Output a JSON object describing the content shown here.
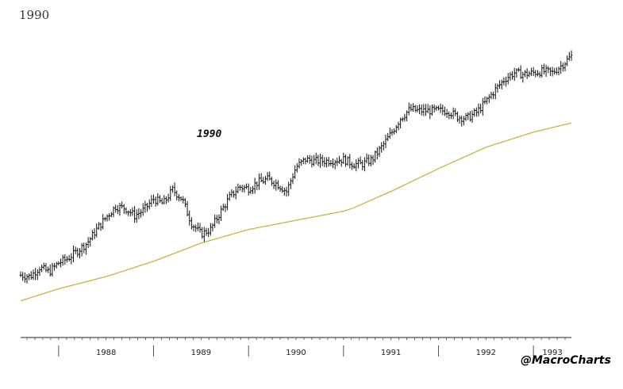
{
  "page": {
    "title": "1990",
    "watermark": "@MacroCharts"
  },
  "chart_data": {
    "type": "line",
    "annotation": "1990",
    "x_tick_labels": [
      "1988",
      "1989",
      "1990",
      "1991",
      "1992",
      "1993"
    ],
    "colors": {
      "price": "#111111",
      "moving_average": "#c8b14a"
    },
    "series": [
      {
        "style": "ohlc-bars",
        "x": [
          1987.6,
          1987.7,
          1987.8,
          1987.9,
          1988.0,
          1988.1,
          1988.2,
          1988.3,
          1988.4,
          1988.5,
          1988.6,
          1988.7,
          1988.8,
          1988.9,
          1989.0,
          1989.1,
          1989.2,
          1989.3,
          1989.4,
          1989.5,
          1989.6,
          1989.7,
          1989.8,
          1989.9,
          1990.0,
          1990.1,
          1990.2,
          1990.3,
          1990.4,
          1990.5,
          1990.6,
          1990.7,
          1990.8,
          1990.9,
          1991.0,
          1991.1,
          1991.2,
          1991.3,
          1991.4,
          1991.5,
          1991.6,
          1991.7,
          1991.8,
          1991.9,
          1992.0,
          1992.1,
          1992.2,
          1992.3,
          1992.4,
          1992.5,
          1992.6,
          1992.7,
          1992.8,
          1992.9,
          1993.0,
          1993.1,
          1993.2,
          1993.3,
          1993.4
        ],
        "values": [
          230,
          228,
          240,
          234,
          246,
          252,
          262,
          272,
          290,
          306,
          320,
          318,
          308,
          316,
          330,
          324,
          342,
          330,
          298,
          284,
          290,
          312,
          332,
          346,
          344,
          352,
          356,
          350,
          340,
          372,
          382,
          380,
          380,
          381,
          382,
          376,
          376,
          382,
          398,
          416,
          436,
          448,
          446,
          446,
          446,
          446,
          438,
          436,
          444,
          458,
          474,
          488,
          496,
          494,
          496,
          498,
          496,
          506,
          518
        ]
      },
      {
        "style": "line",
        "x": [
          1987.6,
          1988.0,
          1988.5,
          1989.0,
          1989.5,
          1990.0,
          1990.5,
          1991.0,
          1991.1,
          1991.5,
          1992.0,
          1992.5,
          1993.0,
          1993.4
        ],
        "values": [
          196,
          212,
          228,
          248,
          272,
          290,
          302,
          314,
          318,
          340,
          370,
          398,
          418,
          430
        ]
      }
    ],
    "ylim": [
      150,
      550
    ],
    "xlim": [
      1987.6,
      1993.4
    ],
    "grid": false
  }
}
